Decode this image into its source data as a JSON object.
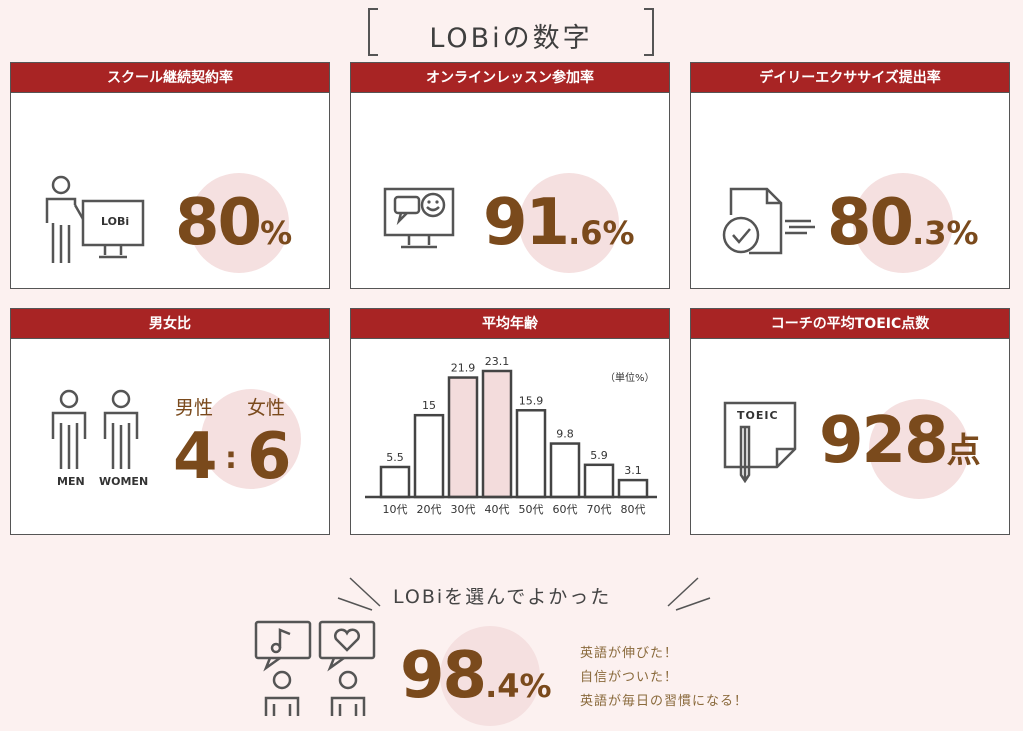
{
  "page": {
    "title": "LOBiの数字"
  },
  "cards": {
    "contract": {
      "header": "スクール継続契約率",
      "value": "80",
      "unit": "%",
      "icon_text": "LOBi"
    },
    "lesson": {
      "header": "オンラインレッスン参加率",
      "value_int": "91",
      "value_dec": ".6",
      "unit": "%"
    },
    "exercise": {
      "header": "デイリーエクササイズ提出率",
      "value_int": "80",
      "value_dec": ".3",
      "unit": "%"
    },
    "gender": {
      "header": "男女比",
      "men_label": "MEN",
      "women_label": "WOMEN",
      "male": "男性",
      "female": "女性",
      "male_val": "4",
      "sep": ":",
      "female_val": "6"
    },
    "age": {
      "header": "平均年齢",
      "unit_note": "（単位%）"
    },
    "toeic": {
      "header": "コーチの平均TOEIC点数",
      "icon_text": "TOEIC",
      "value": "928",
      "unit": "点"
    }
  },
  "chart_data": {
    "type": "bar",
    "title": "平均年齢",
    "categories": [
      "10代",
      "20代",
      "30代",
      "40代",
      "50代",
      "60代",
      "70代",
      "80代"
    ],
    "values": [
      5.5,
      15,
      21.9,
      23.1,
      15.9,
      9.8,
      5.9,
      3.1
    ],
    "highlight": [
      "30代",
      "40代"
    ],
    "unit": "（単位%）",
    "ylim": [
      0,
      23.1
    ]
  },
  "bottom": {
    "title": "LOBiを選んでよかった",
    "value_int": "98",
    "value_dec": ".4",
    "unit": "%",
    "comments": [
      "英語が伸びた！",
      "自信がついた！",
      "英語が毎日の習慣になる！"
    ]
  },
  "colors": {
    "header": "#a82424",
    "number": "#7a4a1c",
    "circle": "#f5e0e0",
    "background": "#fcf1f0"
  }
}
